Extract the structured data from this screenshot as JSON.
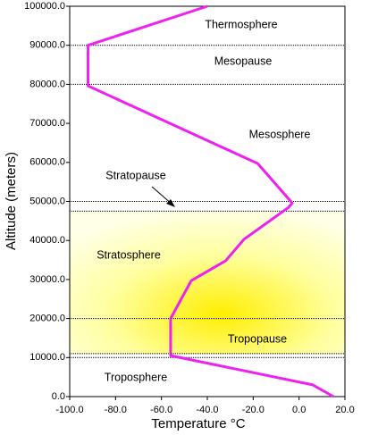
{
  "chart_data": {
    "type": "line",
    "xlabel": "Temperature °C",
    "ylabel": "Altitude (meters)",
    "xlim": [
      -100,
      20
    ],
    "ylim": [
      0,
      100000
    ],
    "xticks": [
      {
        "value": -100,
        "label": "-100.0"
      },
      {
        "value": -80,
        "label": "-80.0"
      },
      {
        "value": -60,
        "label": "-60.0"
      },
      {
        "value": -40,
        "label": "-40.0"
      },
      {
        "value": -20,
        "label": "-20.0"
      },
      {
        "value": 0,
        "label": "0.0"
      },
      {
        "value": 20,
        "label": "20.0"
      }
    ],
    "yticks": [
      {
        "value": 0,
        "label": "0.0"
      },
      {
        "value": 10000,
        "label": "10000.0"
      },
      {
        "value": 20000,
        "label": "20000.0"
      },
      {
        "value": 30000,
        "label": "30000.0"
      },
      {
        "value": 40000,
        "label": "40000.0"
      },
      {
        "value": 50000,
        "label": "50000.0"
      },
      {
        "value": 60000,
        "label": "60000.0"
      },
      {
        "value": 70000,
        "label": "70000.0"
      },
      {
        "value": 80000,
        "label": "80000.0"
      },
      {
        "value": 90000,
        "label": "90000.0"
      },
      {
        "value": 100000,
        "label": "100000.0"
      }
    ],
    "series": [
      {
        "color": "#ee22ee",
        "x": [
          15,
          6,
          -56,
          -56,
          -47,
          -32,
          -24,
          -4.5,
          -3,
          -18,
          -92,
          -92,
          -40
        ],
        "values": [
          0,
          3000,
          10500,
          20000,
          29700,
          34800,
          40300,
          48500,
          49600,
          59700,
          79600,
          90000,
          100000
        ]
      }
    ],
    "boundaries": [
      10000,
      11000,
      20000,
      47500,
      50000,
      80000,
      90000
    ],
    "annotations": [
      "Thermosphere",
      "Mesopause",
      "Mesosphere",
      "Stratopause",
      "Stratosphere",
      "Tropopause",
      "Troposphere"
    ]
  }
}
